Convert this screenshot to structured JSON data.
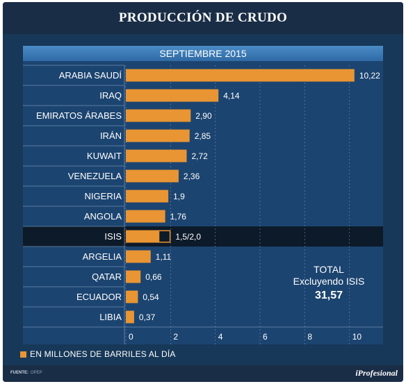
{
  "header": {
    "title": "PRODUCCIÓN DE CRUDO"
  },
  "chart_data": {
    "type": "bar",
    "orientation": "horizontal",
    "title": "PRODUCCIÓN DE CRUDO",
    "subtitle": "SEPTIEMBRE 2015",
    "categories": [
      "ARABIA SAUDÍ",
      "IRAQ",
      "EMIRATOS ÁRABES",
      "IRÁN",
      "KUWAIT",
      "VENEZUELA",
      "NIGERIA",
      "ANGOLA",
      "ISIS",
      "ARGELIA",
      "QATAR",
      "ECUADOR",
      "LIBIA"
    ],
    "values": [
      10.22,
      4.14,
      2.9,
      2.85,
      2.72,
      2.36,
      1.9,
      1.76,
      1.5,
      1.11,
      0.66,
      0.54,
      0.37
    ],
    "range_max": [
      null,
      null,
      null,
      null,
      null,
      null,
      null,
      null,
      2.0,
      null,
      null,
      null,
      null
    ],
    "value_labels": [
      "10,22",
      "4,14",
      "2,90",
      "2,85",
      "2,72",
      "2,36",
      "1,9",
      "1,76",
      "1,5/2,0",
      "1,11",
      "0,66",
      "0,54",
      "0,37"
    ],
    "highlight": "ISIS",
    "xlim": [
      0,
      11.5
    ],
    "xticks": [
      0,
      2,
      4,
      6,
      8,
      10
    ],
    "xtick_labels": [
      "0",
      "2",
      "4",
      "6",
      "8",
      "10"
    ],
    "grid": true,
    "legend": "bottom-left",
    "colors": {
      "bar": "#e99533",
      "highlight_row": "#0d1a29",
      "panel": "#1c4470",
      "grid": "#6f8fb0"
    }
  },
  "total": {
    "title": "TOTAL",
    "subtitle": "Excluyendo ISIS",
    "value": "31,57"
  },
  "legend": {
    "text": "EN MILLONES DE BARRILES AL DÍA"
  },
  "footer": {
    "source_label": "FUENTE:",
    "source_value": "OPEP",
    "brand": "iProfesional"
  }
}
